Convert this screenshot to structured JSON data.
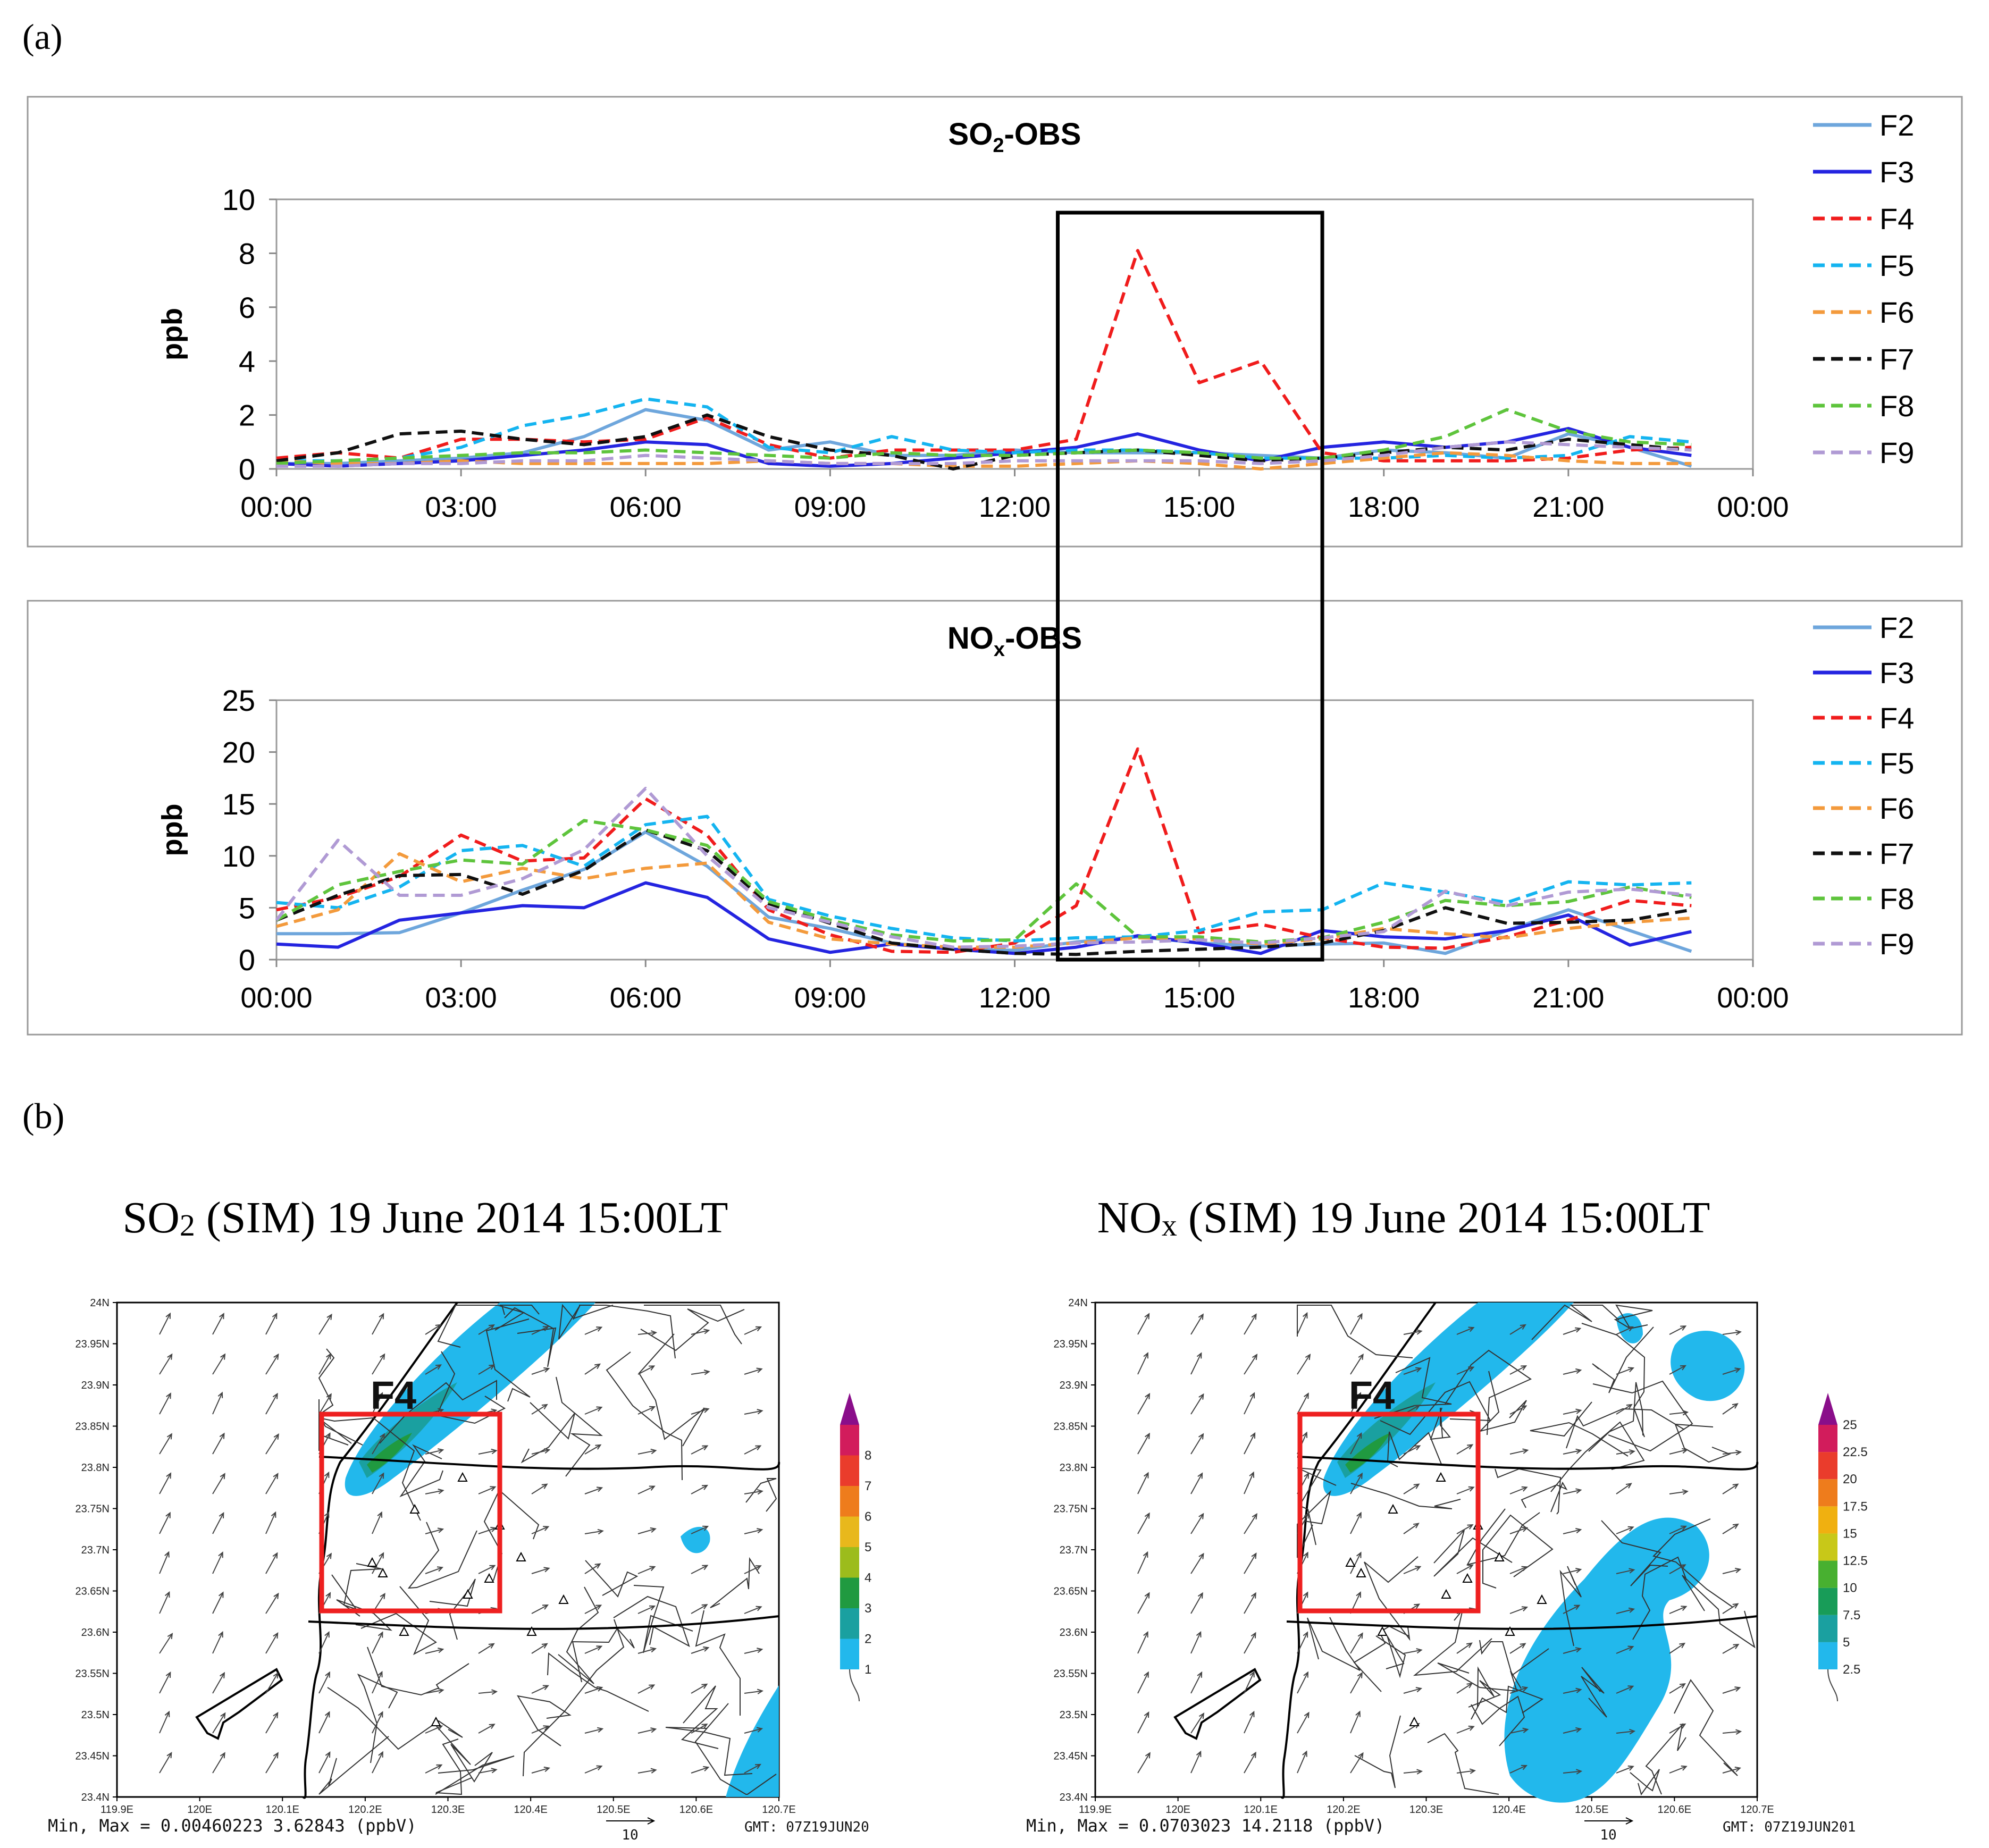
{
  "figure": {
    "panel_a_label": "(a)",
    "panel_b_label": "(b)"
  },
  "colors": {
    "F2": "#6ea6dc",
    "F3": "#2424e0",
    "F4": "#f01c1c",
    "F5": "#14b4f0",
    "F6": "#f39a3c",
    "F7": "#101010",
    "F8": "#5ec43c",
    "F9": "#b09ad4",
    "highlight_box": "#000000",
    "map_box": "#ee2020"
  },
  "chart_data": [
    {
      "type": "line",
      "title_main": "SO",
      "title_sub": "2",
      "title_rest": "-OBS",
      "ylabel": "ppb",
      "xlabel": "",
      "ylim": [
        0,
        10
      ],
      "yticks": [
        0,
        2,
        4,
        6,
        8,
        10
      ],
      "xlim": [
        0,
        24
      ],
      "xticks": [
        0,
        3,
        6,
        9,
        12,
        15,
        18,
        21,
        24
      ],
      "xtick_labels": [
        "00:00",
        "03:00",
        "06:00",
        "09:00",
        "12:00",
        "15:00",
        "18:00",
        "21:00",
        "00:00"
      ],
      "highlight_x": [
        12.7,
        17
      ],
      "x": [
        0,
        1,
        2,
        3,
        4,
        5,
        6,
        7,
        8,
        9,
        10,
        11,
        12,
        13,
        14,
        15,
        16,
        17,
        18,
        19,
        20,
        21,
        22,
        23
      ],
      "series": [
        {
          "name": "F2",
          "dash": false,
          "values": [
            0.2,
            0.2,
            0.3,
            0.4,
            0.6,
            1.2,
            2.2,
            1.8,
            0.7,
            1.0,
            0.5,
            0.5,
            0.7,
            0.6,
            0.6,
            0.6,
            0.5,
            0.4,
            0.7,
            0.6,
            0.4,
            1.3,
            0.8,
            0.1
          ]
        },
        {
          "name": "F3",
          "dash": false,
          "values": [
            0.2,
            0.1,
            0.2,
            0.3,
            0.5,
            0.7,
            1.0,
            0.9,
            0.2,
            0.1,
            0.2,
            0.4,
            0.6,
            0.8,
            1.3,
            0.7,
            0.3,
            0.8,
            1.0,
            0.8,
            1.0,
            1.5,
            0.8,
            0.5
          ]
        },
        {
          "name": "F4",
          "dash": true,
          "values": [
            0.4,
            0.6,
            0.4,
            1.1,
            1.1,
            1.0,
            1.1,
            1.9,
            0.9,
            0.4,
            0.7,
            0.7,
            0.7,
            1.1,
            8.1,
            3.2,
            4.0,
            0.6,
            0.3,
            0.3,
            0.3,
            0.4,
            0.7,
            0.8
          ]
        },
        {
          "name": "F5",
          "dash": true,
          "values": [
            0.3,
            0.3,
            0.4,
            0.8,
            1.6,
            2.0,
            2.6,
            2.3,
            0.8,
            0.6,
            1.2,
            0.7,
            0.6,
            0.7,
            0.7,
            0.6,
            0.4,
            0.4,
            0.4,
            0.5,
            0.4,
            0.5,
            1.2,
            1.0
          ]
        },
        {
          "name": "F6",
          "dash": true,
          "values": [
            0.3,
            0.2,
            0.2,
            0.3,
            0.2,
            0.2,
            0.2,
            0.2,
            0.3,
            0.2,
            0.2,
            0.1,
            0.1,
            0.2,
            0.3,
            0.2,
            0.0,
            0.2,
            0.4,
            0.6,
            0.5,
            0.3,
            0.2,
            0.2
          ]
        },
        {
          "name": "F7",
          "dash": true,
          "values": [
            0.3,
            0.6,
            1.3,
            1.4,
            1.1,
            0.9,
            1.2,
            2.0,
            1.2,
            0.7,
            0.5,
            0.0,
            0.5,
            0.6,
            0.7,
            0.5,
            0.3,
            0.4,
            0.6,
            0.8,
            0.7,
            1.1,
            0.9,
            0.7
          ]
        },
        {
          "name": "F8",
          "dash": true,
          "values": [
            0.2,
            0.3,
            0.4,
            0.5,
            0.6,
            0.6,
            0.7,
            0.6,
            0.5,
            0.4,
            0.6,
            0.5,
            0.5,
            0.6,
            0.7,
            0.6,
            0.4,
            0.4,
            0.7,
            1.2,
            2.2,
            1.4,
            1.0,
            0.9
          ]
        },
        {
          "name": "F9",
          "dash": true,
          "values": [
            0.1,
            0.1,
            0.2,
            0.2,
            0.3,
            0.3,
            0.5,
            0.4,
            0.3,
            0.2,
            0.2,
            0.2,
            0.3,
            0.3,
            0.3,
            0.3,
            0.2,
            0.3,
            0.5,
            0.8,
            1.0,
            0.9,
            0.8,
            0.7
          ]
        }
      ]
    },
    {
      "type": "line",
      "title_main": "NO",
      "title_sub": "x",
      "title_rest": "-OBS",
      "ylabel": "ppb",
      "xlabel": "",
      "ylim": [
        0,
        25
      ],
      "yticks": [
        0,
        5,
        10,
        15,
        20,
        25
      ],
      "xlim": [
        0,
        24
      ],
      "xticks": [
        0,
        3,
        6,
        9,
        12,
        15,
        18,
        21,
        24
      ],
      "xtick_labels": [
        "00:00",
        "03:00",
        "06:00",
        "09:00",
        "12:00",
        "15:00",
        "18:00",
        "21:00",
        "00:00"
      ],
      "x": [
        0,
        1,
        2,
        3,
        4,
        5,
        6,
        7,
        8,
        9,
        10,
        11,
        12,
        13,
        14,
        15,
        16,
        17,
        18,
        19,
        20,
        21,
        22,
        23
      ],
      "series": [
        {
          "name": "F2",
          "dash": false,
          "values": [
            2.5,
            2.5,
            2.6,
            4.5,
            6.7,
            8.7,
            12.3,
            9.0,
            4.1,
            3.0,
            1.6,
            1.0,
            0.9,
            1.7,
            2.2,
            1.6,
            1.3,
            1.5,
            1.6,
            0.6,
            2.8,
            4.8,
            2.8,
            0.8
          ]
        },
        {
          "name": "F3",
          "dash": false,
          "values": [
            1.5,
            1.2,
            3.8,
            4.5,
            5.2,
            5.0,
            7.4,
            6.0,
            2.0,
            0.7,
            1.5,
            1.0,
            0.6,
            1.2,
            2.3,
            1.6,
            0.6,
            2.8,
            2.2,
            2.0,
            2.8,
            4.3,
            1.4,
            2.7
          ]
        },
        {
          "name": "F4",
          "dash": true,
          "values": [
            4.8,
            6.0,
            8.0,
            12.0,
            9.5,
            9.8,
            15.5,
            12.0,
            4.8,
            2.4,
            0.8,
            0.7,
            1.6,
            5.2,
            20.3,
            2.6,
            3.4,
            2.1,
            1.2,
            1.1,
            2.2,
            3.8,
            5.7,
            5.2
          ]
        },
        {
          "name": "F5",
          "dash": true,
          "values": [
            5.5,
            5.0,
            7.0,
            10.5,
            11.0,
            9.0,
            13.0,
            13.8,
            5.8,
            4.2,
            3.0,
            2.1,
            1.8,
            2.1,
            2.2,
            2.8,
            4.6,
            4.8,
            7.4,
            6.5,
            5.5,
            7.5,
            7.2,
            7.4
          ]
        },
        {
          "name": "F6",
          "dash": true,
          "values": [
            3.2,
            4.8,
            10.2,
            7.5,
            8.8,
            7.8,
            8.8,
            9.3,
            3.6,
            2.0,
            1.5,
            1.2,
            1.2,
            1.6,
            2.1,
            2.0,
            1.5,
            2.0,
            3.0,
            2.5,
            2.1,
            3.0,
            3.6,
            4.0
          ]
        },
        {
          "name": "F7",
          "dash": true,
          "values": [
            3.8,
            6.2,
            8.1,
            8.2,
            6.3,
            8.6,
            12.5,
            10.5,
            5.4,
            3.5,
            1.6,
            1.0,
            0.6,
            0.5,
            0.8,
            1.0,
            1.2,
            1.6,
            2.8,
            5.0,
            3.5,
            3.6,
            3.8,
            4.8
          ]
        },
        {
          "name": "F8",
          "dash": true,
          "values": [
            3.8,
            7.2,
            8.5,
            9.6,
            9.2,
            13.4,
            12.5,
            11.0,
            5.6,
            3.8,
            2.4,
            1.8,
            1.9,
            7.3,
            2.2,
            2.2,
            1.7,
            2.1,
            3.6,
            5.7,
            5.2,
            5.6,
            7.0,
            6.0
          ]
        },
        {
          "name": "F9",
          "dash": true,
          "values": [
            3.8,
            11.5,
            6.2,
            6.2,
            7.8,
            10.6,
            16.5,
            10.0,
            5.0,
            3.6,
            2.2,
            1.2,
            1.3,
            1.6,
            1.7,
            1.9,
            1.6,
            2.1,
            2.7,
            6.6,
            5.2,
            6.5,
            6.8,
            6.2
          ]
        }
      ]
    }
  ],
  "maps": [
    {
      "title_pre": "SO",
      "title_sub": "2",
      "title_post": " (SIM) 19 June 2014 15:00LT",
      "site_label": "F4",
      "colorbar_labels": [
        "1",
        "2",
        "3",
        "4",
        "5",
        "6",
        "7",
        "8"
      ],
      "colorbar_colors": [
        "#22b8ec",
        "#1aa0a0",
        "#209a40",
        "#9cbc1c",
        "#e8b81c",
        "#ee7c1c",
        "#ea3c2c",
        "#d21c5c"
      ],
      "min_max_text": "Min, Max = 0.00460223 3.62843 (ppbV)",
      "vector_scale": "10",
      "gmt_text": "GMT: 07Z19JUN20"
    },
    {
      "title_pre": "NO",
      "title_sub": "x",
      "title_post": " (SIM) 19 June 2014 15:00LT",
      "site_label": "F4",
      "colorbar_labels": [
        "2.5",
        "5",
        "7.5",
        "10",
        "12.5",
        "15",
        "17.5",
        "20",
        "22.5",
        "25"
      ],
      "colorbar_colors": [
        "#22b8ec",
        "#1aa0a0",
        "#189c58",
        "#48b030",
        "#c8c818",
        "#f0b010",
        "#ee7c1c",
        "#ea3c2c",
        "#d21c5c"
      ],
      "min_max_text": "Min, Max = 0.0703023 14.2118 (ppbV)",
      "vector_scale": "10",
      "gmt_text": "GMT: 07Z19JUN201"
    }
  ],
  "map_axes": {
    "lat_labels": [
      "24N",
      "23.95N",
      "23.9N",
      "23.85N",
      "23.8N",
      "23.75N",
      "23.7N",
      "23.65N",
      "23.6N",
      "23.55N",
      "23.5N",
      "23.45N",
      "23.4N"
    ],
    "lon_labels": [
      "119.9E",
      "120E",
      "120.1E",
      "120.2E",
      "120.3E",
      "120.4E",
      "120.5E",
      "120.6E",
      "120.7E"
    ]
  }
}
